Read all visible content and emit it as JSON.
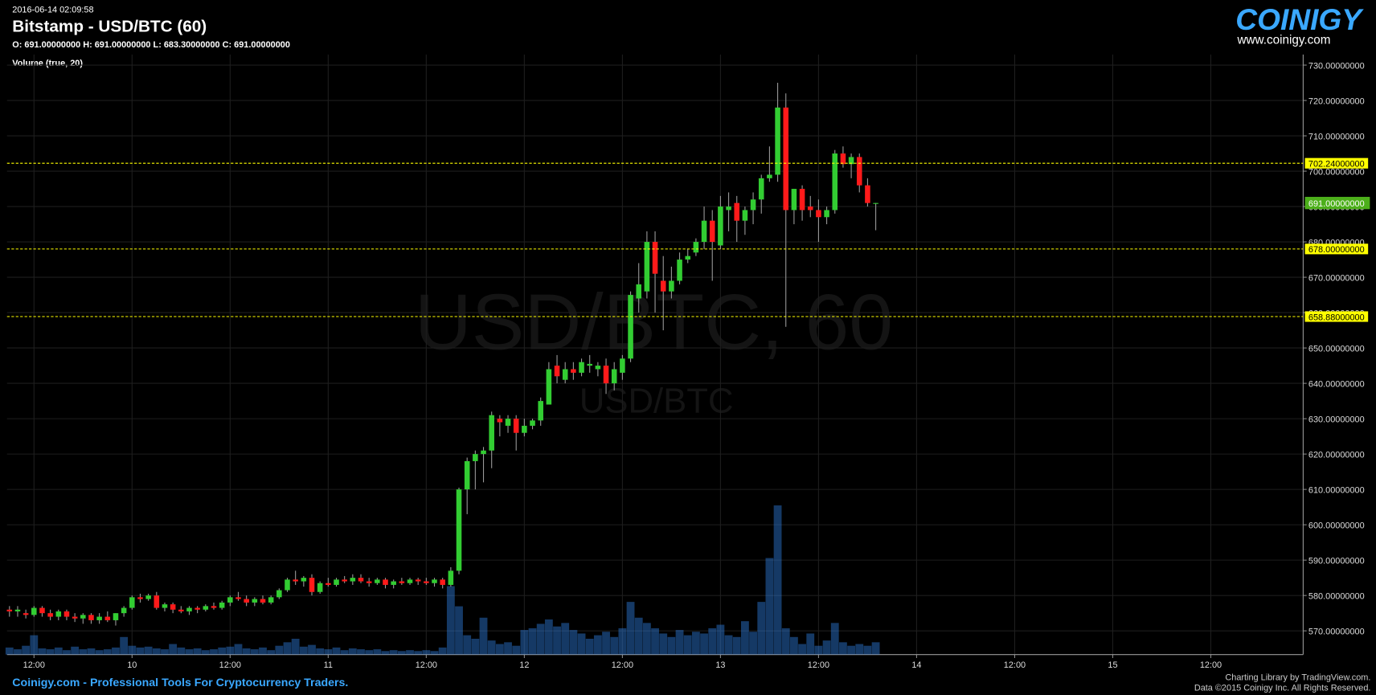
{
  "header": {
    "timestamp": "2016-06-14 02:09:58",
    "symbol": "Bitstamp - USD/BTC (60)",
    "ohlc": "O: 691.00000000 H: 691.00000000 L: 683.30000000 C: 691.00000000",
    "indicator": "Volume (true, 20)"
  },
  "logo": {
    "name": "COINIGY",
    "url": "www.coinigy.com"
  },
  "watermark": {
    "main": "USD/BTC, 60",
    "sub": "USD/BTC"
  },
  "footer": {
    "left": "Coinigy.com - Professional Tools For Cryptocurrency Traders.",
    "credit": "Charting Library by TradingView.com.",
    "rights": "Data ©2015 Coinigy Inc. All Rights Reserved."
  },
  "chart_data": {
    "type": "candlestick",
    "x": [
      -3,
      -2,
      -1,
      0,
      1,
      2,
      3,
      4,
      5,
      6,
      7,
      8,
      9,
      10,
      11,
      12,
      13,
      14,
      15,
      16,
      17,
      18,
      19,
      20,
      21,
      22,
      23,
      24,
      25,
      26,
      27,
      28,
      29,
      30,
      31,
      32,
      33,
      34,
      35,
      36,
      37,
      38,
      39,
      40,
      41,
      42,
      43,
      44,
      45,
      46,
      47,
      48,
      49,
      50,
      51,
      52,
      53,
      54,
      55,
      56,
      57,
      58,
      59,
      60,
      61,
      62,
      63,
      64,
      65,
      66,
      67,
      68,
      69,
      70,
      71,
      72,
      73,
      74,
      75,
      76,
      77,
      78,
      79,
      80,
      81,
      82,
      83,
      84,
      85,
      86,
      87,
      88,
      89,
      90,
      91,
      92,
      93,
      94,
      95,
      96,
      97,
      98,
      99,
      100,
      101,
      102,
      103
    ],
    "open": [
      576,
      575.5,
      575,
      574.5,
      576.5,
      575,
      574,
      575.5,
      574,
      573.5,
      574.5,
      573,
      574,
      573,
      575,
      576.5,
      579.5,
      579,
      580,
      576.5,
      577.5,
      576,
      575.5,
      576.5,
      576,
      577,
      576.5,
      578,
      579.5,
      579,
      578,
      579,
      578,
      579.5,
      581.5,
      584.5,
      584,
      585,
      581,
      583.5,
      583,
      584.5,
      584,
      585,
      584,
      583.5,
      584.5,
      583,
      584,
      583.5,
      584.5,
      584,
      583.5,
      584.5,
      583,
      587,
      610,
      618,
      620,
      621,
      630,
      628,
      630,
      626,
      628,
      629.5,
      634,
      645,
      641,
      644,
      643,
      645,
      644,
      645,
      640,
      643,
      647,
      664,
      666,
      680,
      669,
      666,
      669,
      675,
      677,
      680,
      686,
      679,
      689,
      691,
      686,
      689,
      692,
      698,
      699,
      718,
      689,
      695,
      690,
      689,
      687,
      689,
      705,
      702,
      704,
      696,
      691
    ],
    "high": [
      577,
      577,
      576,
      577,
      577,
      576,
      576,
      576,
      575,
      575,
      575,
      575,
      575.5,
      575,
      577,
      580,
      580.5,
      580.5,
      581,
      578,
      578,
      577,
      577,
      577,
      577.5,
      578,
      578.5,
      580,
      581,
      580,
      579.5,
      580,
      580,
      582,
      585,
      587,
      585.5,
      586,
      584,
      585,
      585,
      585.5,
      586,
      586,
      585,
      585,
      585,
      584.5,
      585,
      585,
      585,
      585,
      585,
      585,
      588,
      610.5,
      619,
      621,
      622,
      632,
      631,
      631,
      631,
      630,
      630,
      636,
      646,
      648,
      646,
      646,
      647,
      648,
      646,
      647,
      646,
      648,
      666,
      674,
      683,
      683,
      676,
      673,
      677,
      678,
      681,
      690,
      689,
      693,
      694,
      693,
      690,
      694,
      699,
      707,
      725,
      722,
      695,
      696,
      693,
      692,
      690,
      706,
      707,
      705,
      705,
      698,
      691
    ],
    "low": [
      574,
      574,
      573.5,
      574,
      574,
      573,
      573,
      573,
      572.5,
      572,
      572,
      572,
      572.5,
      571.5,
      574,
      576,
      578,
      578.5,
      576,
      575.5,
      575,
      575,
      574.5,
      575,
      575.5,
      576,
      576,
      577,
      578.5,
      577,
      577,
      577.5,
      577.5,
      579,
      581,
      583,
      582.5,
      580,
      580.5,
      582.5,
      582.5,
      583.5,
      583,
      583.5,
      582.5,
      583,
      582,
      582,
      583,
      583,
      583,
      583,
      582.5,
      582,
      582.5,
      586,
      603,
      610,
      612,
      616,
      625,
      626,
      621,
      625,
      627,
      628,
      634,
      640,
      640,
      641,
      642,
      643,
      642,
      637,
      638,
      641,
      646,
      660,
      664,
      660,
      655,
      664,
      668,
      674,
      676,
      678,
      669,
      678,
      683,
      680,
      682,
      685,
      688,
      697,
      697,
      656,
      685,
      686,
      687,
      680,
      685,
      688,
      701,
      698,
      694,
      690,
      683.3
    ],
    "close": [
      575.5,
      576,
      574.5,
      576.5,
      575,
      574,
      575.5,
      574,
      573.5,
      574.5,
      573,
      574,
      573,
      575,
      576.5,
      579.5,
      579,
      580,
      576.5,
      577.5,
      576,
      575.5,
      576.5,
      576,
      577,
      576.5,
      578,
      579.5,
      579,
      578,
      579,
      578,
      579.5,
      581.5,
      584.5,
      584,
      585,
      581,
      583.5,
      583,
      584.5,
      584,
      585,
      584,
      583.5,
      584.5,
      583,
      584,
      583.5,
      584.5,
      584,
      583.5,
      584.5,
      583,
      587,
      610,
      618,
      620,
      621,
      631,
      629,
      630,
      626,
      628,
      629.5,
      635,
      644,
      642,
      644,
      643,
      646,
      645.5,
      645,
      640,
      644,
      647,
      665,
      668,
      680,
      671,
      666,
      669,
      675,
      676,
      680,
      686,
      680,
      690,
      690,
      686,
      689,
      692,
      698,
      699,
      718,
      689,
      695,
      689,
      689,
      687,
      689,
      705,
      702,
      704,
      696,
      691,
      691
    ],
    "volume": [
      8,
      6,
      10,
      22,
      7,
      6,
      8,
      5,
      9,
      6,
      7,
      5,
      6,
      8,
      20,
      10,
      8,
      9,
      7,
      6,
      12,
      8,
      6,
      7,
      5,
      6,
      8,
      9,
      12,
      7,
      6,
      8,
      5,
      10,
      14,
      18,
      9,
      11,
      7,
      6,
      8,
      5,
      7,
      6,
      5,
      6,
      4,
      5,
      4,
      5,
      4,
      5,
      4,
      8,
      78,
      55,
      22,
      18,
      42,
      16,
      12,
      14,
      10,
      28,
      30,
      35,
      40,
      32,
      36,
      28,
      24,
      18,
      22,
      26,
      20,
      30,
      60,
      42,
      36,
      30,
      24,
      20,
      28,
      22,
      26,
      24,
      30,
      34,
      22,
      20,
      38,
      26,
      60,
      110,
      170,
      30,
      20,
      12,
      24,
      10,
      16,
      36,
      14,
      10,
      12,
      10,
      14
    ],
    "up_color": "#32cd32",
    "down_color": "#ff1a1a",
    "volume_color": "#2f7ee0",
    "xlim": [
      -3.3,
      155.3
    ],
    "xticks": [
      {
        "value": 0,
        "label": "12:00"
      },
      {
        "value": 12,
        "label": "10"
      },
      {
        "value": 24,
        "label": "12:00"
      },
      {
        "value": 36,
        "label": "11"
      },
      {
        "value": 48,
        "label": "12:00"
      },
      {
        "value": 60,
        "label": "12"
      },
      {
        "value": 72,
        "label": "12:00"
      },
      {
        "value": 84,
        "label": "13"
      },
      {
        "value": 96,
        "label": "12:00"
      },
      {
        "value": 108,
        "label": "14"
      },
      {
        "value": 120,
        "label": "12:00"
      },
      {
        "value": 132,
        "label": "15"
      },
      {
        "value": 144,
        "label": "12:00"
      }
    ],
    "ylim": [
      563.3,
      733
    ],
    "yticks": [
      {
        "value": 570,
        "label": "570.00000000"
      },
      {
        "value": 580,
        "label": "580.00000000"
      },
      {
        "value": 590,
        "label": "590.00000000"
      },
      {
        "value": 600,
        "label": "600.00000000"
      },
      {
        "value": 610,
        "label": "610.00000000"
      },
      {
        "value": 620,
        "label": "620.00000000"
      },
      {
        "value": 630,
        "label": "630.00000000"
      },
      {
        "value": 640,
        "label": "640.00000000"
      },
      {
        "value": 650,
        "label": "650.00000000"
      },
      {
        "value": 660,
        "label": "660.00000000"
      },
      {
        "value": 670,
        "label": "670.00000000"
      },
      {
        "value": 680,
        "label": "680.00000000"
      },
      {
        "value": 690,
        "label": "690.00000000"
      },
      {
        "value": 700,
        "label": "700.00000000"
      },
      {
        "value": 710,
        "label": "710.00000000"
      },
      {
        "value": 720,
        "label": "720.00000000"
      },
      {
        "value": 730,
        "label": "730.00000000"
      }
    ],
    "grid": true,
    "price_lines": [
      {
        "value": 702.24,
        "label": "702.24000000"
      },
      {
        "value": 678,
        "label": "678.00000000"
      },
      {
        "value": 658.88,
        "label": "658.88000000"
      }
    ],
    "price_line_color": "#ffff00",
    "last_price": {
      "value": 691,
      "label": "691.00000000"
    },
    "last_price_color": "#4caf1a"
  }
}
